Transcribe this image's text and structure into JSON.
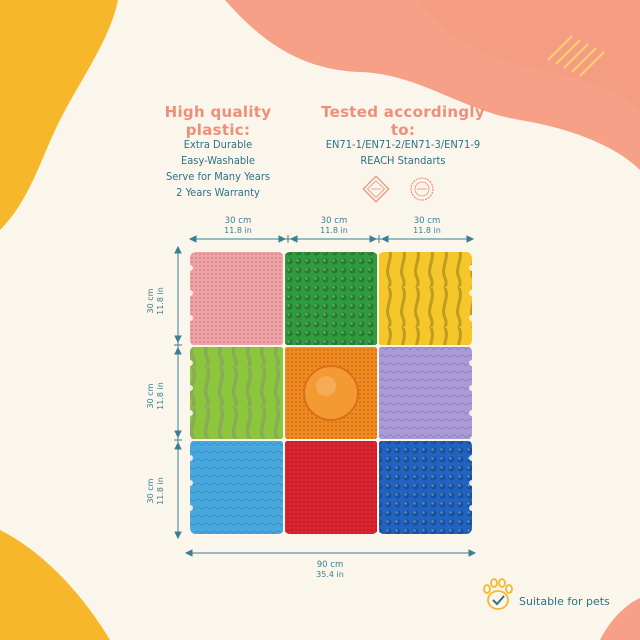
{
  "features": {
    "heading": "High quality plastic:",
    "items": [
      "Extra Durable",
      "Easy-Washable",
      "Serve for Many Years",
      "2 Years Warranty"
    ]
  },
  "testing": {
    "heading": "Tested accordingly to:",
    "items": [
      "EN71-1/EN71-2/EN71-3/EN71-9",
      "REACH Standarts"
    ]
  },
  "dimensions": {
    "tile_cm": "30 cm",
    "tile_in": "11.8 in",
    "total_cm": "90 cm",
    "total_in": "35.4 in"
  },
  "tiles": [
    {
      "name": "pink-tile",
      "color": "#f2a3a6"
    },
    {
      "name": "green-tile",
      "color": "#2f9b3c"
    },
    {
      "name": "yellow-tile",
      "color": "#f6c72a"
    },
    {
      "name": "lime-tile",
      "color": "#8bc63c"
    },
    {
      "name": "orange-tile",
      "color": "#f28a1f"
    },
    {
      "name": "lavender-tile",
      "color": "#ab9ad8"
    },
    {
      "name": "sky-blue-tile",
      "color": "#48a9e0"
    },
    {
      "name": "red-tile",
      "color": "#dc2430"
    },
    {
      "name": "blue-tile",
      "color": "#2163c0"
    }
  ],
  "pets": {
    "label": "Suitable for pets",
    "icon": "paw-check-icon"
  },
  "colors": {
    "accent_coral": "#ef8f7a",
    "text_teal": "#2d7286",
    "blob_yellow": "#f6b82a",
    "blob_salmon": "#f6a187"
  }
}
